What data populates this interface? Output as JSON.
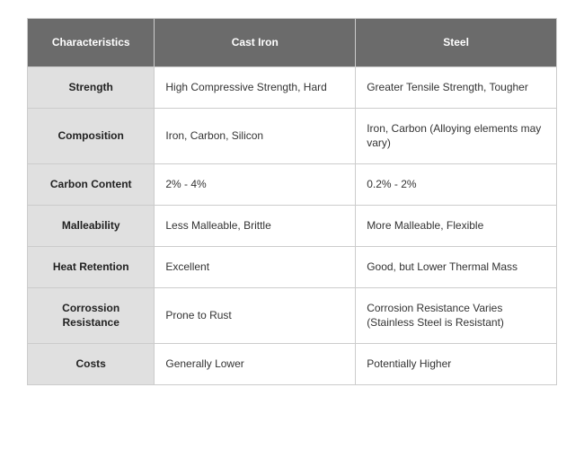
{
  "table": {
    "type": "table",
    "columns": [
      "Characteristics",
      "Cast Iron",
      "Steel"
    ],
    "column_widths_pct": [
      24,
      38,
      38
    ],
    "header_bg": "#6b6b6b",
    "header_text_color": "#ffffff",
    "row_header_bg": "#e0e0e0",
    "row_header_text_color": "#222222",
    "data_cell_bg": "#ffffff",
    "data_cell_text_color": "#333333",
    "border_color": "#cccccc",
    "header_fontsize": 12,
    "body_fontsize": 12,
    "rows": [
      {
        "characteristic": "Strength",
        "cast_iron": "High Compressive Strength, Hard",
        "steel": "Greater Tensile Strength, Tougher"
      },
      {
        "characteristic": "Composition",
        "cast_iron": "Iron, Carbon, Silicon",
        "steel": "Iron, Carbon (Alloying elements may vary)"
      },
      {
        "characteristic": "Carbon Content",
        "cast_iron": "2% - 4%",
        "steel": "0.2% - 2%"
      },
      {
        "characteristic": "Malleability",
        "cast_iron": "Less Malleable, Brittle",
        "steel": "More Malleable, Flexible"
      },
      {
        "characteristic": "Heat Retention",
        "cast_iron": "Excellent",
        "steel": "Good, but Lower Thermal Mass"
      },
      {
        "characteristic": "Corrossion Resistance",
        "cast_iron": "Prone to Rust",
        "steel": "Corrosion Resistance Varies (Stainless Steel is Resistant)"
      },
      {
        "characteristic": "Costs",
        "cast_iron": "Generally Lower",
        "steel": "Potentially Higher"
      }
    ]
  }
}
